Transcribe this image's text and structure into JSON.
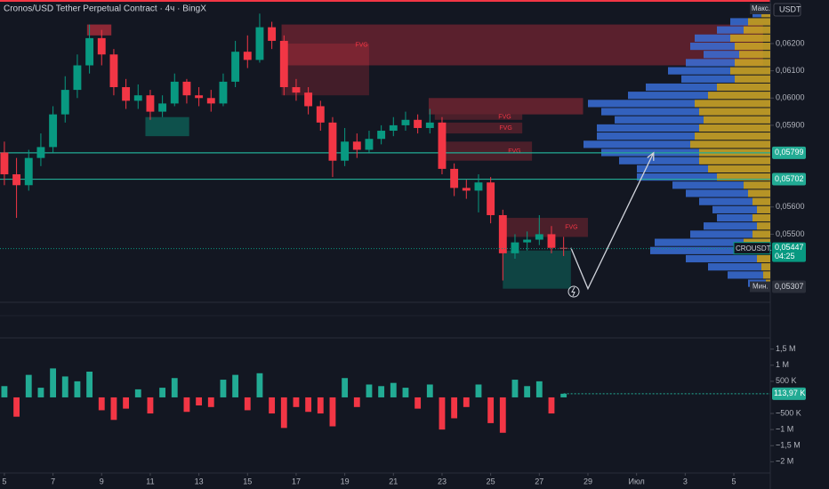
{
  "header": {
    "title": "Cronos/USD Tether Perpetual Contract · 4ч · BingX",
    "currency": "USDT"
  },
  "chart_data": [
    {
      "type": "candlestick",
      "x": [
        5,
        5.5,
        6,
        6.5,
        7,
        7.5,
        8,
        8.5,
        9,
        9.5,
        10,
        10.5,
        11,
        11.5,
        12,
        12.5,
        13,
        13.5,
        14,
        14.5,
        15,
        15.5,
        16,
        16.5,
        17,
        17.5,
        18,
        18.5,
        19,
        19.5,
        20,
        20.5,
        21,
        21.5,
        22,
        22.5,
        23,
        23.5,
        24,
        24.5,
        25,
        25.5,
        26,
        26.5,
        27,
        27.5,
        28
      ],
      "open": [
        0.058,
        0.0572,
        0.0568,
        0.0578,
        0.0582,
        0.0594,
        0.0603,
        0.0612,
        0.0622,
        0.0616,
        0.0604,
        0.0599,
        0.0601,
        0.0595,
        0.0598,
        0.0606,
        0.0601,
        0.06,
        0.0598,
        0.0606,
        0.0617,
        0.0614,
        0.0626,
        0.0621,
        0.0604,
        0.0602,
        0.0597,
        0.0591,
        0.0577,
        0.0584,
        0.0581,
        0.0585,
        0.0588,
        0.059,
        0.0592,
        0.0589,
        0.0591,
        0.0574,
        0.0567,
        0.0566,
        0.0569,
        0.0557,
        0.0543,
        0.0547,
        0.0548,
        0.055,
        0.0545
      ],
      "high": [
        0.0584,
        0.0578,
        0.0581,
        0.0587,
        0.0597,
        0.0608,
        0.0616,
        0.0627,
        0.0625,
        0.0618,
        0.0607,
        0.0605,
        0.0603,
        0.0601,
        0.0609,
        0.0607,
        0.0604,
        0.0603,
        0.0609,
        0.0621,
        0.0623,
        0.0631,
        0.0628,
        0.0623,
        0.0607,
        0.0604,
        0.0599,
        0.0593,
        0.0589,
        0.0587,
        0.0588,
        0.059,
        0.0593,
        0.0595,
        0.0594,
        0.0596,
        0.0593,
        0.0576,
        0.057,
        0.0572,
        0.0571,
        0.0559,
        0.055,
        0.0551,
        0.0557,
        0.0553,
        0.0549
      ],
      "low": [
        0.0568,
        0.0556,
        0.0566,
        0.0575,
        0.058,
        0.0591,
        0.06,
        0.0609,
        0.0612,
        0.0601,
        0.0596,
        0.0596,
        0.0592,
        0.0593,
        0.0597,
        0.0598,
        0.0597,
        0.0595,
        0.0597,
        0.0604,
        0.0611,
        0.0613,
        0.0618,
        0.0601,
        0.0599,
        0.0594,
        0.0588,
        0.0571,
        0.0575,
        0.0578,
        0.058,
        0.0583,
        0.0586,
        0.0588,
        0.0587,
        0.0587,
        0.0572,
        0.0564,
        0.0563,
        0.0558,
        0.0554,
        0.0533,
        0.0541,
        0.0544,
        0.0546,
        0.0543,
        0.0542
      ],
      "close": [
        0.0572,
        0.0568,
        0.0578,
        0.0582,
        0.0594,
        0.0603,
        0.0612,
        0.0622,
        0.0616,
        0.0604,
        0.0599,
        0.0601,
        0.0595,
        0.0598,
        0.0606,
        0.0601,
        0.06,
        0.0598,
        0.0606,
        0.0617,
        0.0614,
        0.0626,
        0.0621,
        0.0604,
        0.0602,
        0.0597,
        0.0591,
        0.0577,
        0.0584,
        0.0581,
        0.0585,
        0.0588,
        0.059,
        0.0592,
        0.0589,
        0.0591,
        0.0574,
        0.0567,
        0.0566,
        0.0569,
        0.0557,
        0.0543,
        0.0547,
        0.0548,
        0.055,
        0.0545,
        0.05447
      ],
      "up_color": "#089981",
      "down_color": "#f23645",
      "xlim": [
        4.82,
        36.5
      ],
      "xticks": [
        5,
        7,
        9,
        11,
        13,
        15,
        17,
        19,
        21,
        23,
        25,
        27,
        29,
        {
          "value": 31,
          "label": "Июл"
        },
        {
          "value": 33,
          "label": "3"
        },
        {
          "value": 35,
          "label": "5"
        }
      ],
      "ylim": [
        0.0525,
        0.0636
      ],
      "yticks": [
        {
          "value": 0.055,
          "label": "0,05500"
        },
        {
          "value": 0.056,
          "label": "0,05600"
        },
        {
          "value": 0.059,
          "label": "0,05900"
        },
        {
          "value": 0.06,
          "label": "0,06000"
        },
        {
          "value": 0.061,
          "label": "0,06100"
        },
        {
          "value": 0.062,
          "label": "0,06200"
        }
      ],
      "hlines": [
        {
          "value": 0.05799,
          "label": "0,05799",
          "color": "#22ab94"
        },
        {
          "value": 0.05702,
          "label": "0,05702",
          "color": "#22ab94"
        }
      ],
      "zones": [
        {
          "x0": 16.4,
          "x1": 36.2,
          "y0": 0.0612,
          "y1": 0.0627,
          "color": "rgba(242,54,69,0.32)",
          "label": "FVG"
        },
        {
          "x0": 16.4,
          "x1": 20.0,
          "y0": 0.0601,
          "y1": 0.062,
          "color": "rgba(242,54,69,0.22)"
        },
        {
          "x0": 22.45,
          "x1": 28.8,
          "y0": 0.0594,
          "y1": 0.06,
          "color": "rgba(242,54,69,0.35)"
        },
        {
          "x0": 22.7,
          "x1": 26.3,
          "y0": 0.0592,
          "y1": 0.0594,
          "color": "rgba(242,54,69,0.25)",
          "label": "FVG"
        },
        {
          "x0": 22.9,
          "x1": 26.3,
          "y0": 0.0587,
          "y1": 0.0591,
          "color": "rgba(242,54,69,0.25)",
          "label": "FVG"
        },
        {
          "x0": 23.1,
          "x1": 26.7,
          "y0": 0.0577,
          "y1": 0.0584,
          "color": "rgba(242,54,69,0.25)",
          "label": "FVG"
        },
        {
          "x0": 25.6,
          "x1": 29.0,
          "y0": 0.0549,
          "y1": 0.0556,
          "color": "rgba(242,54,69,0.25)",
          "label": "FVG"
        },
        {
          "x0": 10.8,
          "x1": 12.6,
          "y0": 0.0586,
          "y1": 0.0593,
          "color": "rgba(8,153,129,0.45)"
        },
        {
          "x0": 25.5,
          "x1": 28.3,
          "y0": 0.053,
          "y1": 0.0544,
          "color": "rgba(8,153,129,0.35)"
        },
        {
          "x0": 8.4,
          "x1": 9.4,
          "y0": 0.0623,
          "y1": 0.0627,
          "color": "rgba(242,54,69,0.55)"
        }
      ],
      "profile": {
        "prices": [
          0.0532,
          0.0535,
          0.0538,
          0.0541,
          0.0544,
          0.0547,
          0.055,
          0.0553,
          0.0556,
          0.0559,
          0.0562,
          0.0565,
          0.0568,
          0.0571,
          0.0574,
          0.0577,
          0.058,
          0.0583,
          0.0586,
          0.0589,
          0.0592,
          0.0595,
          0.0598,
          0.0601,
          0.0604,
          0.0607,
          0.061,
          0.0613,
          0.0616,
          0.0619,
          0.0622,
          0.0625,
          0.0628,
          0.0631
        ],
        "yellow": [
          5,
          8,
          10,
          15,
          25,
          30,
          20,
          15,
          20,
          15,
          20,
          25,
          30,
          60,
          70,
          80,
          80,
          90,
          85,
          80,
          75,
          80,
          85,
          70,
          60,
          40,
          45,
          40,
          35,
          40,
          45,
          30,
          25,
          10
        ],
        "blue": [
          20,
          40,
          60,
          80,
          110,
          100,
          70,
          60,
          40,
          50,
          60,
          70,
          80,
          90,
          80,
          90,
          110,
          120,
          110,
          115,
          100,
          110,
          120,
          90,
          80,
          60,
          70,
          55,
          40,
          50,
          40,
          30,
          20,
          10
        ],
        "yellow_color": "#c9a227",
        "blue_color": "#3a6fd8"
      },
      "projection": {
        "x": [
          28.3,
          29.0,
          31.7
        ],
        "y": [
          0.0545,
          0.053,
          0.05799
        ],
        "color": "#d1d4dc"
      },
      "last": {
        "value": 0.05447,
        "label": "0,05447",
        "symbol": "CROUSDT.P",
        "countdown": "04:25"
      },
      "min": {
        "label": "Мин.",
        "value": 0.05307,
        "value_label": "0,05307"
      },
      "max": {
        "label": "Макс."
      }
    },
    {
      "type": "bar",
      "x": [
        5,
        5.5,
        6,
        6.5,
        7,
        7.5,
        8,
        8.5,
        9,
        9.5,
        10,
        10.5,
        11,
        11.5,
        12,
        12.5,
        13,
        13.5,
        14,
        14.5,
        15,
        15.5,
        16,
        16.5,
        17,
        17.5,
        18,
        18.5,
        19,
        19.5,
        20,
        20.5,
        21,
        21.5,
        22,
        22.5,
        23,
        23.5,
        24,
        24.5,
        25,
        25.5,
        26,
        26.5,
        27,
        27.5,
        28
      ],
      "values": [
        350000,
        -600000,
        700000,
        300000,
        900000,
        650000,
        500000,
        800000,
        -400000,
        -700000,
        -350000,
        250000,
        -500000,
        300000,
        600000,
        -450000,
        -250000,
        -300000,
        550000,
        700000,
        -400000,
        750000,
        -500000,
        -950000,
        -300000,
        -450000,
        -500000,
        -900000,
        600000,
        -300000,
        400000,
        350000,
        450000,
        300000,
        -350000,
        400000,
        -1000000,
        -650000,
        -300000,
        400000,
        -800000,
        -1100000,
        550000,
        350000,
        500000,
        -500000,
        113970
      ],
      "up_color": "#22ab94",
      "down_color": "#f23645",
      "xlim": [
        4.82,
        36.5
      ],
      "ylim": [
        -2350000,
        1850000
      ],
      "yticks": [
        {
          "value": 1500000,
          "label": "1,5 M"
        },
        {
          "value": 1000000,
          "label": "1 M"
        },
        {
          "value": 500000,
          "label": "500 K"
        },
        {
          "value": -500000,
          "label": "−500 K"
        },
        {
          "value": -1000000,
          "label": "−1 M"
        },
        {
          "value": -1500000,
          "label": "−1,5 M"
        },
        {
          "value": -2000000,
          "label": "−2 M"
        }
      ],
      "last": {
        "value": 113970,
        "label": "113,97 K"
      }
    }
  ]
}
